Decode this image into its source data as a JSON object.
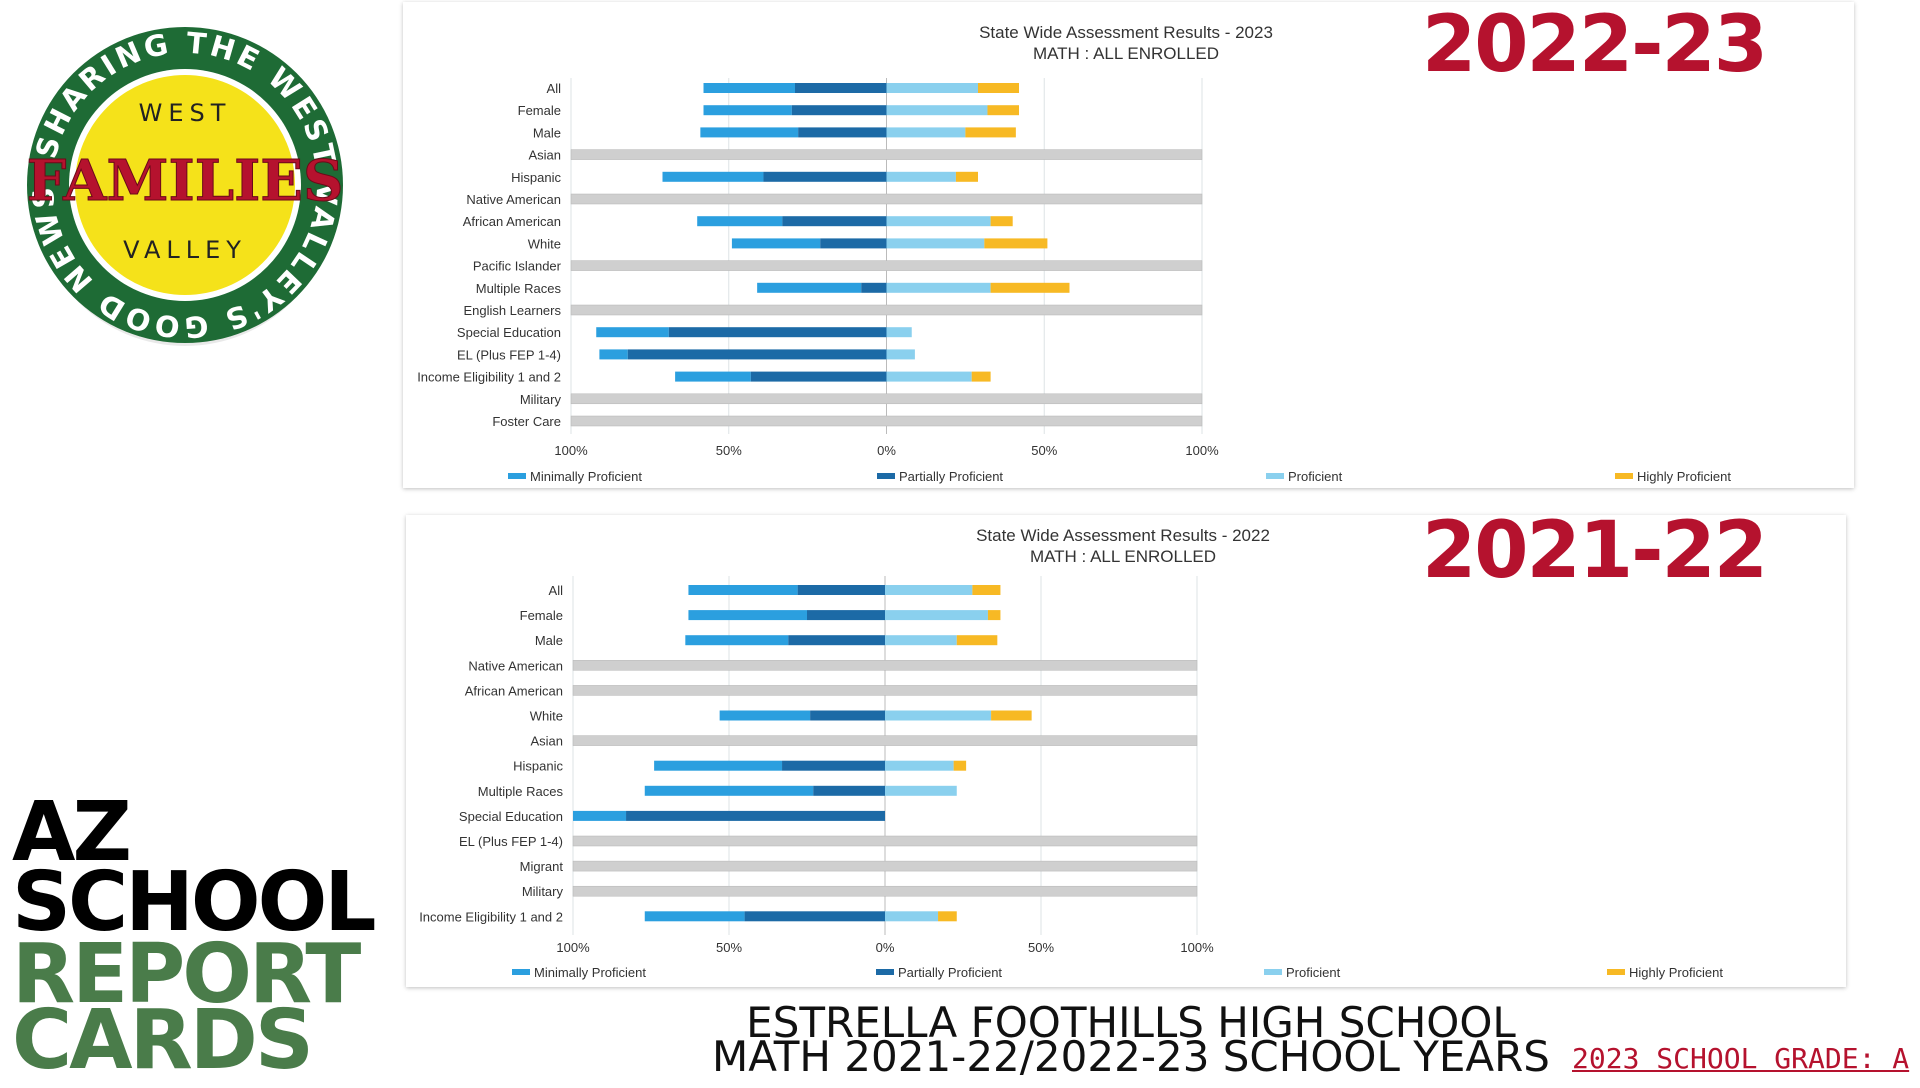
{
  "logo": {
    "ring_text": "SHARING THE WEST VALLEY'S GOOD NEWS",
    "top_text": "WEST",
    "main_text": "FAMILIES",
    "bottom_text": "VALLEY",
    "colors": {
      "ring": "#1e6b35",
      "center": "#f5e21a",
      "main": "#b5122e"
    }
  },
  "title": {
    "line1": "AZ",
    "line2": "SCHOOL",
    "line3": "REPORT",
    "line4": "CARDS"
  },
  "footer": {
    "line1": "ESTRELLA FOOTHILLS HIGH SCHOOL",
    "line2": "MATH 2021-22/2022-23 SCHOOL YEARS",
    "grade": "2023 SCHOOL GRADE: A"
  },
  "colors": {
    "minimally": "#2b9fdf",
    "partially": "#1c6aa6",
    "proficient": "#8ad0ee",
    "highly": "#f7b924",
    "na": "#cfcfcf",
    "accent_red": "#b5122e",
    "accent_green": "#4a7c4a"
  },
  "chart_data": [
    {
      "type": "bar",
      "year_label": "2022-23",
      "title": "State Wide Assessment Results - 2023",
      "subtitle": "MATH : ALL ENROLLED",
      "ticks": [
        "100%",
        "50%",
        "0%",
        "50%",
        "100%"
      ],
      "legend": [
        "Minimally Proficient",
        "Partially Proficient",
        "Proficient",
        "Highly Proficient"
      ],
      "xlim": [
        -100,
        100
      ],
      "categories": [
        "All",
        "Female",
        "Male",
        "Asian",
        "Hispanic",
        "Native American",
        "African American",
        "White",
        "Pacific Islander",
        "Multiple Races",
        "English Learners",
        "Special Education",
        "EL (Plus FEP 1-4)",
        "Income Eligibility 1 and 2",
        "Military",
        "Foster Care"
      ],
      "series": [
        {
          "name": "Minimally Proficient",
          "values": [
            29,
            28,
            31,
            null,
            32,
            null,
            27,
            28,
            null,
            33,
            null,
            23,
            9,
            24,
            null,
            null
          ]
        },
        {
          "name": "Partially Proficient",
          "values": [
            29,
            30,
            28,
            null,
            39,
            null,
            33,
            21,
            null,
            8,
            null,
            69,
            82,
            43,
            null,
            null
          ]
        },
        {
          "name": "Proficient",
          "values": [
            29,
            32,
            25,
            null,
            22,
            null,
            33,
            31,
            null,
            33,
            null,
            8,
            9,
            27,
            null,
            null
          ]
        },
        {
          "name": "Highly Proficient",
          "values": [
            13,
            10,
            16,
            null,
            7,
            null,
            7,
            20,
            null,
            25,
            null,
            0,
            0,
            6,
            null,
            null
          ]
        }
      ]
    },
    {
      "type": "bar",
      "year_label": "2021-22",
      "title": "State Wide Assessment Results - 2022",
      "subtitle": "MATH : ALL ENROLLED",
      "ticks": [
        "100%",
        "50%",
        "0%",
        "50%",
        "100%"
      ],
      "legend": [
        "Minimally Proficient",
        "Partially Proficient",
        "Proficient",
        "Highly Proficient"
      ],
      "xlim": [
        -100,
        100
      ],
      "categories": [
        "All",
        "Female",
        "Male",
        "Native American",
        "African American",
        "White",
        "Asian",
        "Hispanic",
        "Multiple Races",
        "Special Education",
        "EL (Plus FEP 1-4)",
        "Migrant",
        "Military",
        "Income Eligibility 1 and 2"
      ],
      "series": [
        {
          "name": "Minimally Proficient",
          "values": [
            35,
            38,
            33,
            null,
            null,
            29,
            null,
            41,
            54,
            17,
            null,
            null,
            null,
            32
          ]
        },
        {
          "name": "Partially Proficient",
          "values": [
            28,
            25,
            31,
            null,
            null,
            24,
            null,
            33,
            23,
            83,
            null,
            null,
            null,
            45
          ]
        },
        {
          "name": "Proficient",
          "values": [
            28,
            33,
            23,
            null,
            null,
            34,
            null,
            22,
            23,
            0,
            null,
            null,
            null,
            17
          ]
        },
        {
          "name": "Highly Proficient",
          "values": [
            9,
            4,
            13,
            null,
            null,
            13,
            null,
            4,
            0,
            0,
            null,
            null,
            null,
            6
          ]
        }
      ]
    }
  ]
}
